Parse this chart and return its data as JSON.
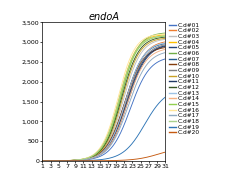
{
  "title": "endoA",
  "xlim": [
    1,
    31
  ],
  "ylim": [
    0,
    3500
  ],
  "yticks": [
    0,
    500,
    1000,
    1500,
    2000,
    2500,
    3000,
    3500
  ],
  "xticks": [
    1,
    3,
    5,
    7,
    9,
    11,
    13,
    15,
    17,
    19,
    21,
    23,
    25,
    27,
    29,
    31
  ],
  "series": [
    {
      "label": "C.d#01",
      "color": "#4472C4",
      "midpoint": 22.5,
      "max": 2650,
      "steep": 0.42
    },
    {
      "label": "C.d#02",
      "color": "#ED7D31",
      "midpoint": 21.5,
      "max": 3050,
      "steep": 0.45
    },
    {
      "label": "C.d#03",
      "color": "#BFBFBF",
      "midpoint": 20.8,
      "max": 3100,
      "steep": 0.46
    },
    {
      "label": "C.d#04",
      "color": "#FFC000",
      "midpoint": 19.8,
      "max": 3200,
      "steep": 0.48
    },
    {
      "label": "C.d#05",
      "color": "#264478",
      "midpoint": 21.8,
      "max": 2950,
      "steep": 0.43
    },
    {
      "label": "C.d#06",
      "color": "#70AD47",
      "midpoint": 20.2,
      "max": 3250,
      "steep": 0.48
    },
    {
      "label": "C.d#07",
      "color": "#255E91",
      "midpoint": 21.2,
      "max": 3000,
      "steep": 0.45
    },
    {
      "label": "C.d#08",
      "color": "#843C0C",
      "midpoint": 21.0,
      "max": 2900,
      "steep": 0.44
    },
    {
      "label": "C.d#09",
      "color": "#808080",
      "midpoint": 21.5,
      "max": 2980,
      "steep": 0.44
    },
    {
      "label": "C.d#10",
      "color": "#C9A227",
      "midpoint": 20.5,
      "max": 3120,
      "steep": 0.47
    },
    {
      "label": "C.d#11",
      "color": "#1F3864",
      "midpoint": 21.6,
      "max": 2960,
      "steep": 0.43
    },
    {
      "label": "C.d#12",
      "color": "#375623",
      "midpoint": 20.3,
      "max": 3150,
      "steep": 0.47
    },
    {
      "label": "C.d#13",
      "color": "#9DC3E6",
      "midpoint": 21.3,
      "max": 3020,
      "steep": 0.45
    },
    {
      "label": "C.d#14",
      "color": "#F4B183",
      "midpoint": 21.7,
      "max": 2870,
      "steep": 0.43
    },
    {
      "label": "C.d#15",
      "color": "#92D050",
      "midpoint": 20.0,
      "max": 3170,
      "steep": 0.48
    },
    {
      "label": "C.d#16",
      "color": "#FFE699",
      "midpoint": 19.5,
      "max": 3220,
      "steep": 0.49
    },
    {
      "label": "C.d#17",
      "color": "#8EA9C1",
      "midpoint": 22.0,
      "max": 2800,
      "steep": 0.42
    },
    {
      "label": "C.d#18",
      "color": "#A9D18E",
      "midpoint": 19.8,
      "max": 3180,
      "steep": 0.48
    },
    {
      "label": "C.d#19",
      "color": "#2E75B6",
      "midpoint": 26.0,
      "max": 1850,
      "steep": 0.38
    },
    {
      "label": "C.d#20",
      "color": "#C55A11",
      "midpoint": 29.5,
      "max": 350,
      "steep": 0.35
    }
  ],
  "bg": "#FFFFFF",
  "title_fs": 7,
  "tick_fs": 4.5,
  "legend_fs": 4.2,
  "lw": 0.65
}
